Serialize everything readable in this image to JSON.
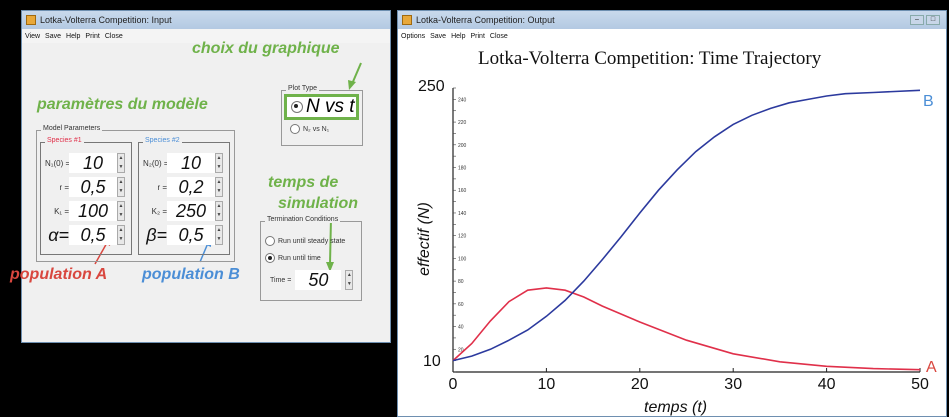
{
  "input_window": {
    "title": "Lotka-Volterra Competition: Input",
    "menu": [
      "View",
      "Save",
      "Help",
      "Print",
      "Close"
    ],
    "model_params_label": "Model Parameters",
    "species1": {
      "label": "Species #1",
      "rows": [
        {
          "label": "N₁(0) =",
          "value": "10"
        },
        {
          "label": "r =",
          "value": "0,5"
        },
        {
          "label": "K₁ =",
          "value": "100"
        },
        {
          "label": "α=",
          "value": "0,5"
        }
      ]
    },
    "species2": {
      "label": "Species #2",
      "rows": [
        {
          "label": "N₂(0) =",
          "value": "10"
        },
        {
          "label": "r =",
          "value": "0,2"
        },
        {
          "label": "K₂ =",
          "value": "250"
        },
        {
          "label": "β=",
          "value": "0,5"
        }
      ]
    },
    "plot_type": {
      "label": "Plot Type",
      "option1": "N vs t",
      "option2": "N₂ vs N₁"
    },
    "termination": {
      "label": "Termination Conditions",
      "option1": "Run until steady state",
      "option2": "Run until time",
      "time_label": "Time =",
      "time_value": "50"
    },
    "annotations": {
      "choix": "choix du graphique",
      "params": "paramètres du modèle",
      "temps_l1": "temps de",
      "temps_l2": "simulation",
      "popA": "population A",
      "popB": "population B"
    }
  },
  "output_window": {
    "title": "Lotka-Volterra Competition: Output",
    "menu": [
      "Options",
      "Save",
      "Help",
      "Print",
      "Close"
    ]
  },
  "chart_data": {
    "type": "line",
    "title": "Lotka-Volterra Competition: Time Trajectory",
    "xlabel": "temps (t)",
    "ylabel": "effectif (N)",
    "xlim": [
      0,
      50
    ],
    "ylim": [
      0,
      250
    ],
    "x_ticks": [
      0,
      10,
      20,
      30,
      40,
      50
    ],
    "y_annot_ticks": [
      10,
      250
    ],
    "series": [
      {
        "name": "A",
        "color": "#e0304a",
        "x": [
          0,
          2,
          4,
          6,
          8,
          10,
          12,
          14,
          16,
          20,
          25,
          30,
          35,
          40,
          45,
          50
        ],
        "values": [
          10,
          25,
          45,
          62,
          72,
          74,
          72,
          66,
          58,
          44,
          28,
          16,
          9,
          5,
          3,
          2
        ]
      },
      {
        "name": "B",
        "color": "#2c3a9e",
        "x": [
          0,
          2,
          4,
          6,
          8,
          10,
          12,
          14,
          16,
          18,
          20,
          22,
          24,
          26,
          28,
          30,
          32,
          34,
          36,
          38,
          40,
          42,
          45,
          50
        ],
        "values": [
          10,
          14,
          20,
          28,
          37,
          49,
          63,
          80,
          99,
          119,
          140,
          160,
          178,
          194,
          207,
          218,
          226,
          232,
          237,
          240,
          243,
          245,
          246,
          248
        ]
      }
    ]
  }
}
